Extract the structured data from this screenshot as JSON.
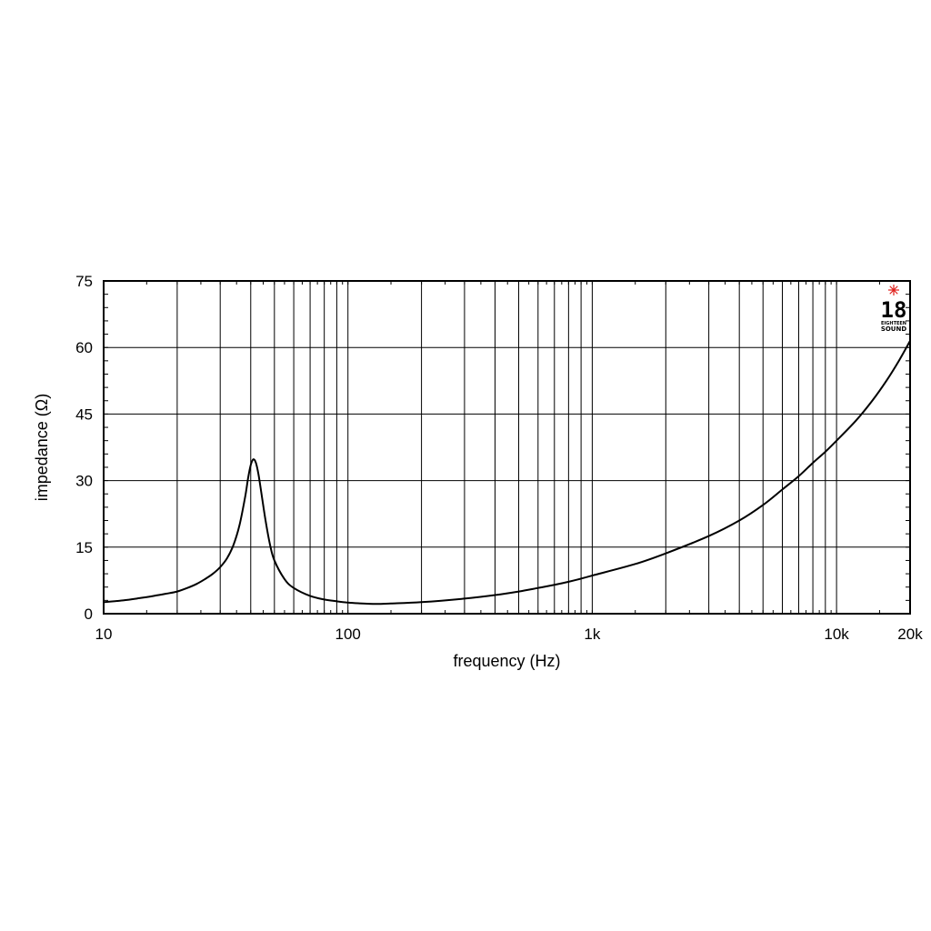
{
  "chart_data": {
    "type": "line",
    "xlabel": "frequency (Hz)",
    "ylabel": "impedance (Ω)",
    "x_scale": "log",
    "xlim": [
      10,
      20000
    ],
    "ylim": [
      0,
      75
    ],
    "grid": true,
    "x_ticks": [
      {
        "value": 10,
        "label": "10"
      },
      {
        "value": 100,
        "label": "100"
      },
      {
        "value": 1000,
        "label": "1k"
      },
      {
        "value": 10000,
        "label": "10k"
      },
      {
        "value": 20000,
        "label": "20k"
      }
    ],
    "y_ticks": [
      {
        "value": 0,
        "label": "0"
      },
      {
        "value": 15,
        "label": "15"
      },
      {
        "value": 30,
        "label": "30"
      },
      {
        "value": 45,
        "label": "45"
      },
      {
        "value": 60,
        "label": "60"
      },
      {
        "value": 75,
        "label": "75"
      }
    ],
    "x_gridlines": [
      20,
      30,
      40,
      50,
      60,
      70,
      80,
      90,
      100,
      200,
      300,
      400,
      500,
      600,
      700,
      800,
      900,
      1000,
      2000,
      3000,
      4000,
      5000,
      6000,
      7000,
      8000,
      9000,
      10000
    ],
    "y_gridlines": [
      15,
      30,
      45,
      60
    ],
    "series": [
      {
        "color": "#000000",
        "points": [
          [
            10,
            2.6
          ],
          [
            12,
            3.0
          ],
          [
            14,
            3.5
          ],
          [
            16,
            4.0
          ],
          [
            18,
            4.5
          ],
          [
            20,
            5.0
          ],
          [
            22,
            5.8
          ],
          [
            24,
            6.7
          ],
          [
            26,
            7.8
          ],
          [
            28,
            9.0
          ],
          [
            30,
            10.5
          ],
          [
            32,
            12.5
          ],
          [
            34,
            15.5
          ],
          [
            36,
            20.0
          ],
          [
            38,
            26.5
          ],
          [
            39,
            30.5
          ],
          [
            40,
            33.5
          ],
          [
            41,
            34.8
          ],
          [
            42,
            34.0
          ],
          [
            43,
            31.5
          ],
          [
            44,
            28.0
          ],
          [
            46,
            21.0
          ],
          [
            48,
            15.5
          ],
          [
            50,
            12.0
          ],
          [
            55,
            7.8
          ],
          [
            60,
            5.8
          ],
          [
            70,
            4.0
          ],
          [
            80,
            3.2
          ],
          [
            90,
            2.8
          ],
          [
            100,
            2.5
          ],
          [
            110,
            2.35
          ],
          [
            130,
            2.2
          ],
          [
            150,
            2.3
          ],
          [
            200,
            2.6
          ],
          [
            300,
            3.4
          ],
          [
            400,
            4.2
          ],
          [
            500,
            5.0
          ],
          [
            600,
            5.8
          ],
          [
            700,
            6.5
          ],
          [
            800,
            7.2
          ],
          [
            900,
            7.9
          ],
          [
            1000,
            8.6
          ],
          [
            1500,
            11.2
          ],
          [
            2000,
            13.6
          ],
          [
            3000,
            17.5
          ],
          [
            4000,
            21.0
          ],
          [
            5000,
            24.5
          ],
          [
            6000,
            28.0
          ],
          [
            7000,
            31.0
          ],
          [
            8000,
            34.0
          ],
          [
            9000,
            36.5
          ],
          [
            10000,
            39.0
          ],
          [
            12000,
            43.5
          ],
          [
            14000,
            48.0
          ],
          [
            16000,
            52.5
          ],
          [
            18000,
            57.0
          ],
          [
            20000,
            61.5
          ]
        ]
      }
    ]
  },
  "logo": {
    "number": "18",
    "line1": "EIGHTEEN",
    "line2": "SOUND",
    "star_color": "#e0201c"
  }
}
